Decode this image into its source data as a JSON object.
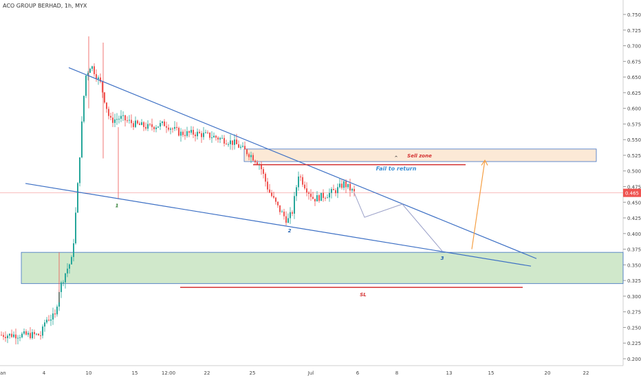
{
  "header": {
    "title": "ACO GROUP BERHAD, 1h, MYX"
  },
  "colors": {
    "up": "#26a69a",
    "down": "#ef5350",
    "line": "#3c6fc4",
    "zone": "#a9d6a0",
    "sell": "#fbe3cc"
  },
  "price_tag": {
    "value": "0.465",
    "color": "#ef5350"
  },
  "chart_data": {
    "type": "candlestick",
    "y_axis": {
      "ylim": [
        0.19,
        0.76
      ],
      "ticks": [
        "0.750",
        "0.725",
        "0.700",
        "0.675",
        "0.650",
        "0.625",
        "0.600",
        "0.575",
        "0.550",
        "0.525",
        "0.500",
        "0.475",
        "0.450",
        "0.425",
        "0.400",
        "0.375",
        "0.350",
        "0.325",
        "0.300",
        "0.275",
        "0.250",
        "0.225",
        "0.200"
      ]
    },
    "x_axis": {
      "ticks": [
        "an",
        "4",
        "10",
        "15",
        "12:00",
        "22",
        "25",
        "Jul",
        "6",
        "8",
        "13",
        "15",
        "20",
        "22"
      ]
    },
    "annotations": {
      "sell_zone": "Sell zone",
      "fail_to_return": "Fail to return",
      "sl": "SL",
      "points": [
        "1",
        "2",
        "3"
      ]
    }
  }
}
